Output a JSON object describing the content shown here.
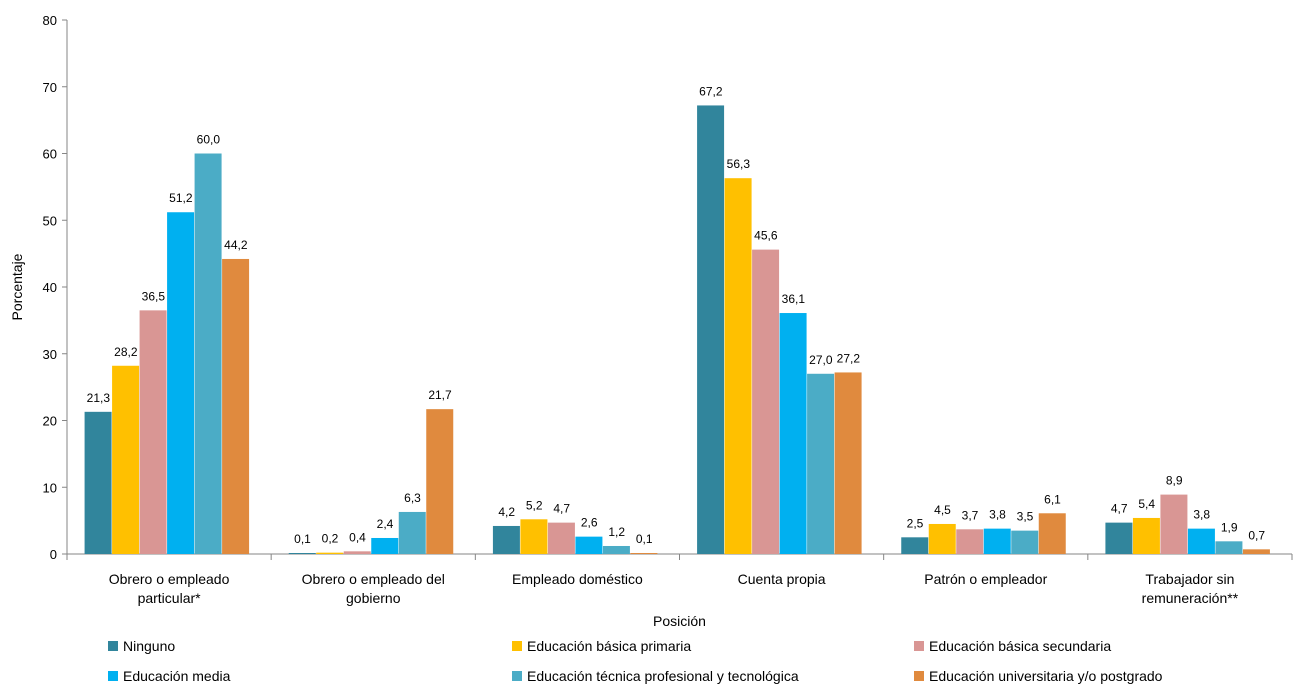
{
  "chart_data": {
    "type": "bar",
    "title": "",
    "xlabel": "Posición",
    "ylabel": "Porcentaje",
    "ylim": [
      0,
      80
    ],
    "yticks": [
      0,
      10,
      20,
      30,
      40,
      50,
      60,
      70,
      80
    ],
    "grid": false,
    "legend_position": "bottom",
    "categories": [
      [
        "Obrero o empleado",
        "particular*"
      ],
      [
        "Obrero o empleado del",
        "gobierno"
      ],
      [
        "Empleado doméstico"
      ],
      [
        "Cuenta propia"
      ],
      [
        "Patrón o empleador"
      ],
      [
        "Trabajador sin",
        "remuneración**"
      ]
    ],
    "series": [
      {
        "name": "Ninguno",
        "color": "#31859C",
        "values": [
          21.3,
          0.1,
          4.2,
          67.2,
          2.5,
          4.7
        ],
        "labels": [
          "21,3",
          "0,1",
          "4,2",
          "67,2",
          "2,5",
          "4,7"
        ]
      },
      {
        "name": "Educación básica primaria",
        "color": "#FFC000",
        "values": [
          28.2,
          0.2,
          5.2,
          56.3,
          4.5,
          5.4
        ],
        "labels": [
          "28,2",
          "0,2",
          "5,2",
          "56,3",
          "4,5",
          "5,4"
        ]
      },
      {
        "name": "Educación básica secundaria",
        "color": "#D99694",
        "values": [
          36.5,
          0.4,
          4.7,
          45.6,
          3.7,
          8.9
        ],
        "labels": [
          "36,5",
          "0,4",
          "4,7",
          "45,6",
          "3,7",
          "8,9"
        ]
      },
      {
        "name": "Educación media",
        "color": "#00B0F0",
        "values": [
          51.2,
          2.4,
          2.6,
          36.1,
          3.8,
          3.8
        ],
        "labels": [
          "51,2",
          "2,4",
          "2,6",
          "36,1",
          "3,8",
          "3,8"
        ]
      },
      {
        "name": "Educación técnica profesional y tecnológica",
        "color": "#4BACC6",
        "values": [
          60.0,
          6.3,
          1.2,
          27.0,
          3.5,
          1.9
        ],
        "labels": [
          "60,0",
          "6,3",
          "1,2",
          "27,0",
          "3,5",
          "1,9"
        ]
      },
      {
        "name": "Educación universitaria y/o postgrado",
        "color": "#E08A3E",
        "values": [
          44.2,
          21.7,
          0.1,
          27.2,
          6.1,
          0.7
        ],
        "labels": [
          "44,2",
          "21,7",
          "0,1",
          "27,2",
          "6,1",
          "0,7"
        ]
      }
    ]
  }
}
